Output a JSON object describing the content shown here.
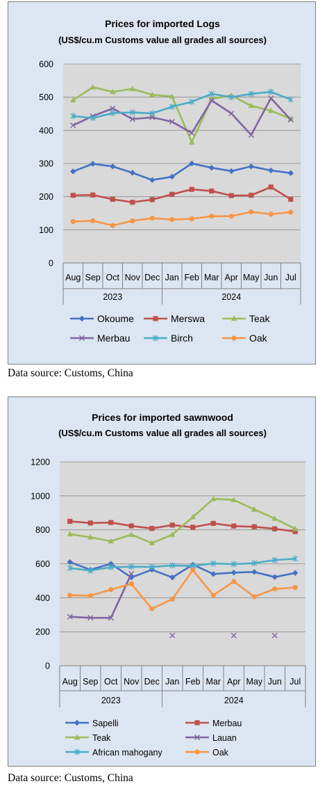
{
  "charts": [
    {
      "chart_data": {
        "type": "line",
        "title": "Prices for imported Logs",
        "subtitle": "(US$/cu.m Customs value all grades all sources)",
        "categories": [
          "Aug",
          "Sep",
          "Oct",
          "Nov",
          "Dec",
          "Jan",
          "Feb",
          "Mar",
          "Apr",
          "May",
          "Jun",
          "Jul"
        ],
        "year_groups": [
          {
            "label": "2023",
            "start": 0,
            "end": 4
          },
          {
            "label": "2024",
            "start": 5,
            "end": 11
          }
        ],
        "ylim": [
          0,
          600
        ],
        "yticks": [
          0,
          100,
          200,
          300,
          400,
          500,
          600
        ],
        "grid": "horizontal",
        "legend_position": "bottom",
        "series": [
          {
            "name": "Okoume",
            "color": "#4472c4",
            "marker": "diamond",
            "values": [
              276,
              299,
              291,
              272,
              250,
              260,
              300,
              287,
              277,
              291,
              279,
              271
            ]
          },
          {
            "name": "Merswa",
            "color": "#c0504d",
            "marker": "square",
            "values": [
              204,
              205,
              192,
              183,
              191,
              207,
              222,
              217,
              203,
              204,
              229,
              192
            ]
          },
          {
            "name": "Teak",
            "color": "#9bbb59",
            "marker": "triangle",
            "values": [
              491,
              530,
              516,
              525,
              507,
              502,
              364,
              495,
              505,
              474,
              459,
              435
            ]
          },
          {
            "name": "Merbau",
            "color": "#8064a2",
            "marker": "x",
            "values": [
              415,
              443,
              466,
              434,
              439,
              426,
              392,
              490,
              451,
              386,
              497,
              432
            ]
          },
          {
            "name": "Birch",
            "color": "#4bacc6",
            "marker": "star",
            "values": [
              443,
              437,
              452,
              454,
              451,
              471,
              486,
              510,
              500,
              510,
              516,
              493
            ]
          },
          {
            "name": "Oak",
            "color": "#f79646",
            "marker": "circle",
            "values": [
              125,
              127,
              113,
              127,
              135,
              131,
              133,
              141,
              141,
              154,
              147,
              153
            ]
          }
        ]
      },
      "source": "Data source: Customs, China"
    },
    {
      "chart_data": {
        "type": "line",
        "title": "Prices for imported sawnwood",
        "subtitle": "(US$/cu.m Customs value all grades all sources)",
        "categories": [
          "Aug",
          "Sep",
          "Oct",
          "Nov",
          "Dec",
          "Jan",
          "Feb",
          "Mar",
          "Apr",
          "May",
          "Jun",
          "Jul"
        ],
        "year_groups": [
          {
            "label": "2023",
            "start": 0,
            "end": 4
          },
          {
            "label": "2024",
            "start": 5,
            "end": 11
          }
        ],
        "ylim": [
          0,
          1200
        ],
        "yticks": [
          0,
          200,
          400,
          600,
          800,
          1000,
          1200
        ],
        "grid": "horizontal",
        "legend_position": "bottom",
        "series": [
          {
            "name": "Sapelli",
            "color": "#4472c4",
            "marker": "diamond",
            "values": [
              610,
              565,
              600,
              520,
              565,
              520,
              595,
              540,
              548,
              552,
              522,
              546
            ]
          },
          {
            "name": "Merbau",
            "color": "#c0504d",
            "marker": "square",
            "values": [
              850,
              840,
              843,
              823,
              808,
              828,
              815,
              838,
              822,
              818,
              806,
              790
            ]
          },
          {
            "name": "Teak",
            "color": "#9bbb59",
            "marker": "triangle",
            "values": [
              775,
              756,
              733,
              772,
              722,
              772,
              875,
              982,
              976,
              920,
              866,
              806
            ]
          },
          {
            "name": "Lauan",
            "color": "#8064a2",
            "marker": "x",
            "values": [
              288,
              282,
              282,
              542,
              null,
              178,
              null,
              null,
              178,
              null,
              178,
              null
            ]
          },
          {
            "name": "African mahogany",
            "color": "#4bacc6",
            "marker": "star",
            "values": [
              575,
              560,
              580,
              583,
              582,
              590,
              588,
              602,
              598,
              604,
              622,
              630
            ]
          },
          {
            "name": "Oak",
            "color": "#f79646",
            "marker": "circle",
            "values": [
              415,
              412,
              448,
              482,
              335,
              392,
              563,
              415,
              496,
              406,
              452,
              460
            ]
          }
        ]
      },
      "source": "Data source: Customs, China"
    }
  ]
}
